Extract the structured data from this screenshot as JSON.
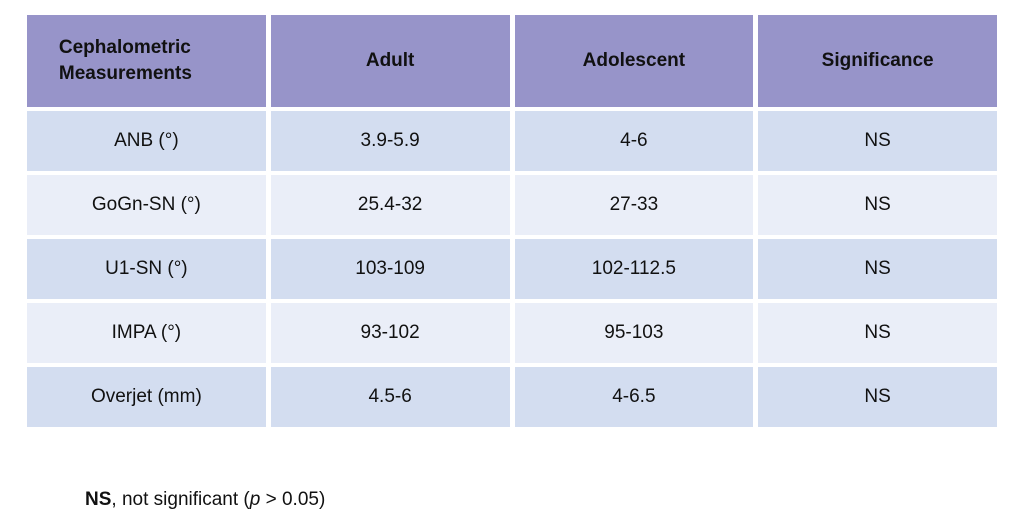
{
  "table": {
    "columns": [
      "Cephalometric Measurements",
      "Adult",
      "Adolescent",
      "Significance"
    ],
    "rows": [
      {
        "measurement": "ANB (°)",
        "adult": "3.9-5.9",
        "adolescent": "4-6",
        "significance": "NS"
      },
      {
        "measurement": "GoGn-SN (°)",
        "adult": "25.4-32",
        "adolescent": "27-33",
        "significance": "NS"
      },
      {
        "measurement": "U1-SN (°)",
        "adult": "103-109",
        "adolescent": "102-112.5",
        "significance": "NS"
      },
      {
        "measurement": "IMPA (°)",
        "adult": "93-102",
        "adolescent": "95-103",
        "significance": "NS"
      },
      {
        "measurement": "Overjet (mm)",
        "adult": "4.5-6",
        "adolescent": "4-6.5",
        "significance": "NS"
      }
    ]
  },
  "footnote": {
    "abbr": "NS",
    "mid": ", not significant (",
    "p_symbol": "p",
    "end": " > 0.05)"
  },
  "colors": {
    "header_bg": "#9794c9",
    "row_dark": "#d3ddf0",
    "row_light": "#eaeef8",
    "text": "#111111",
    "gap": "#ffffff"
  }
}
